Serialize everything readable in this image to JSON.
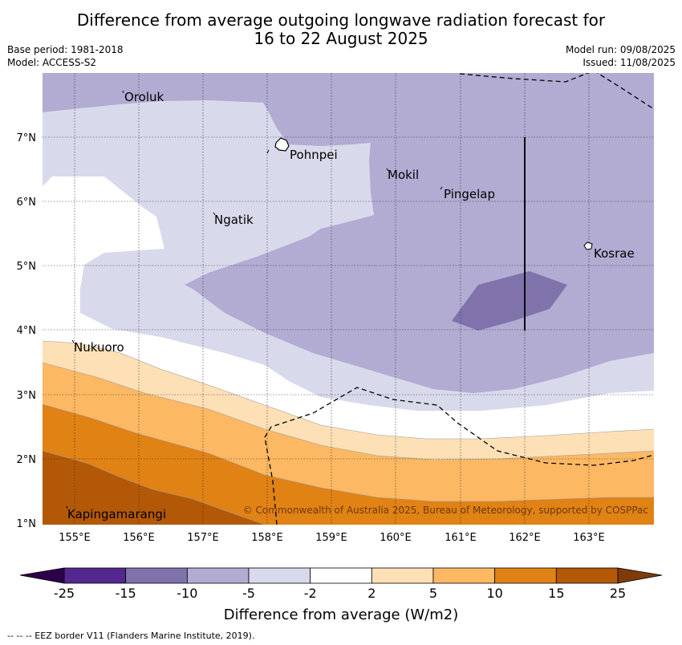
{
  "title_line1": "Difference from average outgoing longwave radiation forecast for",
  "title_line2": "16 to 22 August 2025",
  "base_period": "Base period: 1981-2018",
  "model": "Model: ACCESS-S2",
  "model_run": "Model run: 09/08/2025",
  "issued": "Issued: 11/08/2025",
  "lon_labels": [
    "155°E",
    "156°E",
    "157°E",
    "158°E",
    "159°E",
    "160°E",
    "161°E",
    "162°E",
    "163°E"
  ],
  "lat_labels": [
    "7°N",
    "6°N",
    "5°N",
    "4°N",
    "3°N",
    "2°N",
    "1°N"
  ],
  "places": {
    "oroluk": "Oroluk",
    "pohnpei": "Pohnpei",
    "mokil": "Mokil",
    "pingelap": "Pingelap",
    "ngatik": "Ngatik",
    "kosrae": "Kosrae",
    "nukuoro": "Nukuoro",
    "kapingamarangi": "Kapingamarangi"
  },
  "copyright": "© Commonwealth of Australia 2025, Bureau of Meteorology, supported by COSPPac",
  "colorbar": {
    "ticks": [
      "-25",
      "-15",
      "-10",
      "-5",
      "-2",
      "2",
      "5",
      "10",
      "15",
      "25"
    ],
    "label": "Difference from average (W/m2)",
    "colors": [
      "#54278f",
      "#8073ac",
      "#b2abd2",
      "#d8daeb",
      "#ffffff",
      "#fee0b6",
      "#fdb863",
      "#e08214",
      "#b35806"
    ],
    "under_color": "#2d004b",
    "over_color": "#7f3b08"
  },
  "footer": "--  --  -- EEZ border V11 (Flanders Marine Institute, 2019)."
}
